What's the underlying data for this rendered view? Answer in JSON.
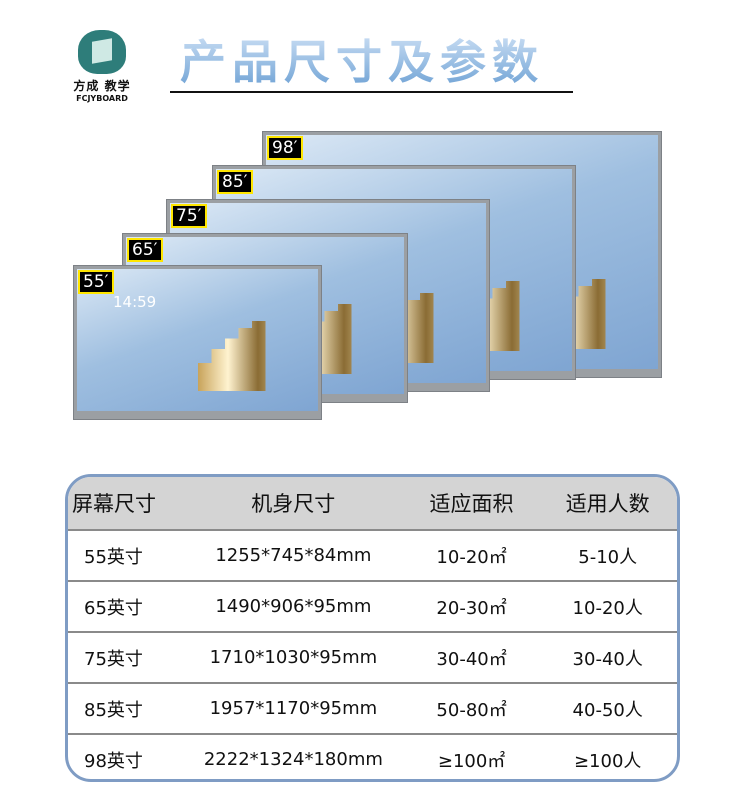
{
  "brand": {
    "name_cn": "方成 教学",
    "name_en": "FCJYBOARD"
  },
  "title": "产品尺寸及参数",
  "monitors": [
    {
      "size": "98′"
    },
    {
      "size": "85′"
    },
    {
      "size": "75′"
    },
    {
      "size": "65′"
    },
    {
      "size": "55′"
    }
  ],
  "screen_clock": "14:59",
  "table": {
    "headers": [
      "屏幕尺寸",
      "机身尺寸",
      "适应面积",
      "适用人数"
    ],
    "rows": [
      [
        "55英寸",
        "1255*745*84mm",
        "10-20㎡",
        "5-10人"
      ],
      [
        "65英寸",
        "1490*906*95mm",
        "20-30㎡",
        "10-20人"
      ],
      [
        "75英寸",
        "1710*1030*95mm",
        "30-40㎡",
        "30-40人"
      ],
      [
        "85英寸",
        "1957*1170*95mm",
        "50-80㎡",
        "40-50人"
      ],
      [
        "98英寸",
        "2222*1324*180mm",
        "≥100㎡",
        "≥100人"
      ]
    ]
  },
  "colors": {
    "table_border": "#7f9cc4",
    "header_bg": "#d4d4d4",
    "label_border": "#ffe600"
  }
}
